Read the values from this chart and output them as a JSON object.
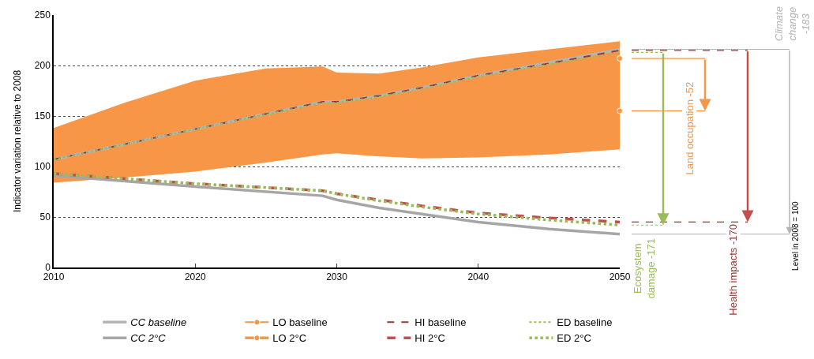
{
  "chart_data": {
    "type": "line",
    "ylabel": "Indicator variation relative to 2008",
    "x": [
      2010,
      2020,
      2029,
      2030,
      2033,
      2036,
      2040,
      2045,
      2050
    ],
    "xlim": [
      2010,
      2050
    ],
    "xticks": [
      2010,
      2020,
      2030,
      2040,
      2050
    ],
    "ylim": [
      0,
      250
    ],
    "yticks": [
      0,
      50,
      100,
      150,
      200,
      250
    ],
    "grid": "y",
    "legend": "bottom",
    "series": [
      {
        "name": "CC baseline",
        "color": "#b4b4b4",
        "line_style": "solid",
        "values": [
          107,
          137,
          164,
          164,
          170,
          178,
          190,
          203,
          216
        ]
      },
      {
        "name": "CC 2°C",
        "color": "#a6a6a6",
        "line_style": "solid",
        "values": [
          91,
          80,
          71,
          67,
          59,
          53,
          45,
          38,
          33
        ]
      },
      {
        "name": "LO baseline",
        "color": "#f79646",
        "line_style": "solid",
        "marker": "circle",
        "x": [
          2010,
          2015,
          2020,
          2025,
          2029,
          2030,
          2033,
          2036,
          2040,
          2045,
          2050
        ],
        "values": [
          null,
          null,
          null,
          null,
          null,
          null,
          null,
          null,
          null,
          null,
          207
        ],
        "lower": [
          84,
          89,
          95,
          104,
          112,
          113,
          110,
          108,
          109,
          112,
          117
        ],
        "upper": [
          138,
          163,
          185,
          197,
          199,
          193,
          192,
          198,
          208,
          216,
          224
        ]
      },
      {
        "name": "LO 2°C",
        "color": "#f79646",
        "line_style": "solid",
        "marker": "circle",
        "x": [
          2050
        ],
        "values": [
          155
        ]
      },
      {
        "name": "HI baseline",
        "color": "#953735",
        "line_style": "dashed",
        "values": [
          107,
          137,
          164,
          164,
          170,
          178,
          190,
          202,
          215
        ]
      },
      {
        "name": "HI 2°C",
        "color": "#c0504d",
        "line_style": "dashed",
        "values": [
          93,
          83,
          76,
          73,
          67,
          61,
          54,
          49,
          45
        ]
      },
      {
        "name": "ED baseline",
        "color": "#9bbb59",
        "line_style": "dotted",
        "values": [
          107,
          137,
          163,
          163,
          169,
          177,
          189,
          201,
          213
        ]
      },
      {
        "name": "ED 2°C",
        "color": "#9bbb59",
        "line_style": "dotted",
        "values": [
          93,
          83,
          76,
          73,
          66,
          60,
          53,
          47,
          42
        ]
      }
    ],
    "annotations": [
      "Climate\nchange\n-183",
      "Land occupation -52",
      "Health impacts -170",
      "Ecosystem\ndamage -171",
      "Level in 2008 = 100"
    ]
  }
}
